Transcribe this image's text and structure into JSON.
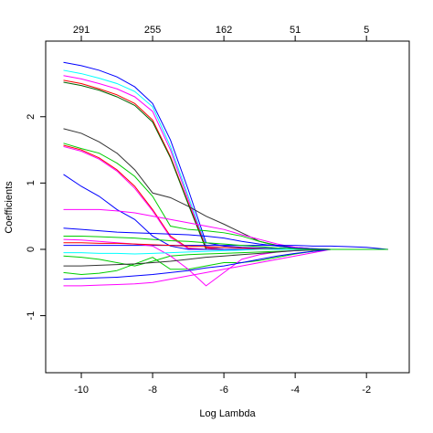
{
  "chart_data": {
    "type": "line",
    "x_label": "Log Lambda",
    "y_label": "Coefficients",
    "xlim": [
      -11.0,
      -0.8
    ],
    "ylim": [
      -1.86,
      3.14
    ],
    "xticks": [
      -10,
      -8,
      -6,
      -4,
      -2
    ],
    "yticks": [
      -1,
      0,
      1,
      2
    ],
    "x2ticks": [
      {
        "value": -10,
        "label": "291"
      },
      {
        "value": -8,
        "label": "255"
      },
      {
        "value": -6,
        "label": "162"
      },
      {
        "value": -4,
        "label": "51"
      },
      {
        "value": -2,
        "label": "5"
      }
    ],
    "x": [
      -10.5,
      -10,
      -9.5,
      -9,
      -8.5,
      -8,
      -7.5,
      -7,
      -6.5,
      -6,
      -5.5,
      -5,
      -4.5,
      -4,
      -3.5,
      -3,
      -2.5,
      -2,
      -1.4
    ],
    "series": [
      {
        "color": "#0000FF",
        "values": [
          2.82,
          2.77,
          2.7,
          2.6,
          2.45,
          2.2,
          1.65,
          0.9,
          0.1,
          0.05,
          0.03,
          0.02,
          0.01,
          0,
          0,
          0,
          0,
          0,
          0
        ]
      },
      {
        "color": "#00FFFF",
        "values": [
          2.7,
          2.65,
          2.58,
          2.5,
          2.38,
          2.15,
          1.55,
          0.8,
          0.05,
          0,
          0,
          0,
          0,
          0,
          0,
          0,
          0,
          0,
          0
        ]
      },
      {
        "color": "#FF00FF",
        "values": [
          2.62,
          2.57,
          2.5,
          2.42,
          2.3,
          2.08,
          1.5,
          0.75,
          0.03,
          0,
          0,
          0,
          0,
          0,
          0,
          0,
          0,
          0,
          0
        ]
      },
      {
        "color": "#FF0000",
        "values": [
          2.55,
          2.5,
          2.42,
          2.33,
          2.2,
          1.95,
          1.4,
          0.7,
          0.02,
          0,
          0,
          0,
          0,
          0,
          0,
          0,
          0,
          0,
          0
        ]
      },
      {
        "color": "#006400",
        "values": [
          2.52,
          2.47,
          2.4,
          2.3,
          2.17,
          1.92,
          1.38,
          0.68,
          0,
          0,
          0,
          0,
          0,
          0,
          0,
          0,
          0,
          0,
          0
        ]
      },
      {
        "color": "#333333",
        "values": [
          1.82,
          1.75,
          1.62,
          1.45,
          1.2,
          0.85,
          0.78,
          0.65,
          0.5,
          0.38,
          0.25,
          0.12,
          0.06,
          0.03,
          0.01,
          0,
          0,
          0,
          0
        ]
      },
      {
        "color": "#FF0000",
        "values": [
          1.57,
          1.5,
          1.38,
          1.2,
          0.95,
          0.6,
          0.2,
          0.02,
          0,
          0,
          0,
          0,
          0,
          0,
          0,
          0,
          0,
          0,
          0
        ]
      },
      {
        "color": "#FF00FF",
        "values": [
          1.55,
          1.48,
          1.36,
          1.18,
          0.92,
          0.58,
          0.18,
          0.01,
          0,
          0,
          0,
          0,
          0,
          0,
          0,
          0,
          0,
          0,
          0
        ]
      },
      {
        "color": "#00CD00",
        "values": [
          1.6,
          1.52,
          1.45,
          1.3,
          1.1,
          0.8,
          0.35,
          0.3,
          0.28,
          0.25,
          0.2,
          0.12,
          0.05,
          0.02,
          0,
          0,
          0,
          0,
          0
        ]
      },
      {
        "color": "#0000FF",
        "values": [
          1.13,
          0.95,
          0.8,
          0.6,
          0.45,
          0.2,
          0.05,
          0,
          0,
          0,
          0,
          0,
          0,
          0,
          0,
          0,
          0,
          0,
          0
        ]
      },
      {
        "color": "#FF00FF",
        "values": [
          0.6,
          0.6,
          0.6,
          0.58,
          0.55,
          0.5,
          0.45,
          0.4,
          0.35,
          0.3,
          0.22,
          0.15,
          0.08,
          0.03,
          0.01,
          0,
          0,
          0,
          0
        ]
      },
      {
        "color": "#0000FF",
        "values": [
          0.32,
          0.3,
          0.28,
          0.26,
          0.25,
          0.24,
          0.23,
          0.22,
          0.2,
          0.17,
          0.12,
          0.08,
          0.05,
          0.02,
          0.01,
          0,
          0,
          0,
          0
        ]
      },
      {
        "color": "#0000FF",
        "values": [
          0.06,
          0.06,
          0.06,
          0.06,
          0.06,
          0.06,
          0.06,
          0.06,
          0.06,
          0.06,
          0.06,
          0.06,
          0.06,
          0.06,
          0.05,
          0.05,
          0.04,
          0.03,
          0
        ]
      },
      {
        "color": "#00CD00",
        "values": [
          -0.35,
          -0.38,
          -0.36,
          -0.32,
          -0.22,
          -0.12,
          -0.3,
          -0.3,
          -0.25,
          -0.2,
          -0.2,
          -0.17,
          -0.12,
          -0.07,
          -0.03,
          0,
          0,
          0,
          0
        ]
      },
      {
        "color": "#FF00FF",
        "values": [
          -0.55,
          -0.55,
          -0.54,
          -0.53,
          -0.52,
          -0.5,
          -0.45,
          -0.4,
          -0.35,
          -0.3,
          -0.25,
          -0.2,
          -0.15,
          -0.1,
          -0.05,
          0,
          0,
          0,
          0
        ]
      },
      {
        "color": "#00CD00",
        "values": [
          -0.1,
          -0.12,
          -0.15,
          -0.2,
          -0.25,
          -0.18,
          -0.1,
          -0.08,
          -0.07,
          -0.06,
          -0.05,
          -0.04,
          -0.03,
          -0.02,
          -0.01,
          0,
          0,
          0,
          0
        ]
      },
      {
        "color": "#FF00FF",
        "values": [
          0.15,
          0.14,
          0.12,
          0.1,
          0.08,
          0.05,
          -0.1,
          -0.3,
          -0.55,
          -0.35,
          -0.15,
          -0.08,
          -0.04,
          -0.02,
          0,
          0,
          0,
          0,
          0
        ]
      },
      {
        "color": "#333333",
        "values": [
          -0.25,
          -0.25,
          -0.24,
          -0.23,
          -0.22,
          -0.2,
          -0.18,
          -0.15,
          -0.12,
          -0.1,
          -0.08,
          -0.06,
          -0.04,
          -0.02,
          -0.01,
          0,
          0,
          0,
          0
        ]
      },
      {
        "color": "#FF0000",
        "values": [
          0.1,
          0.1,
          0.09,
          0.09,
          0.08,
          0.07,
          0.06,
          0.05,
          0.04,
          0.03,
          0.02,
          0.01,
          0,
          0,
          0,
          0,
          0,
          0,
          0
        ]
      },
      {
        "color": "#00FFFF",
        "values": [
          -0.05,
          -0.05,
          -0.06,
          -0.06,
          -0.07,
          -0.06,
          -0.05,
          -0.04,
          -0.03,
          -0.02,
          -0.01,
          0,
          0,
          0,
          0,
          0,
          0,
          0,
          0
        ]
      },
      {
        "color": "#0000FF",
        "values": [
          -0.45,
          -0.44,
          -0.43,
          -0.42,
          -0.4,
          -0.38,
          -0.35,
          -0.32,
          -0.28,
          -0.25,
          -0.2,
          -0.15,
          -0.1,
          -0.06,
          -0.03,
          0,
          0,
          0,
          0
        ]
      },
      {
        "color": "#00CD00",
        "values": [
          0.2,
          0.2,
          0.19,
          0.18,
          0.17,
          0.15,
          0.13,
          0.12,
          0.1,
          0.08,
          0.06,
          0.04,
          0.02,
          0.01,
          0,
          0,
          0,
          0,
          0
        ]
      }
    ]
  }
}
